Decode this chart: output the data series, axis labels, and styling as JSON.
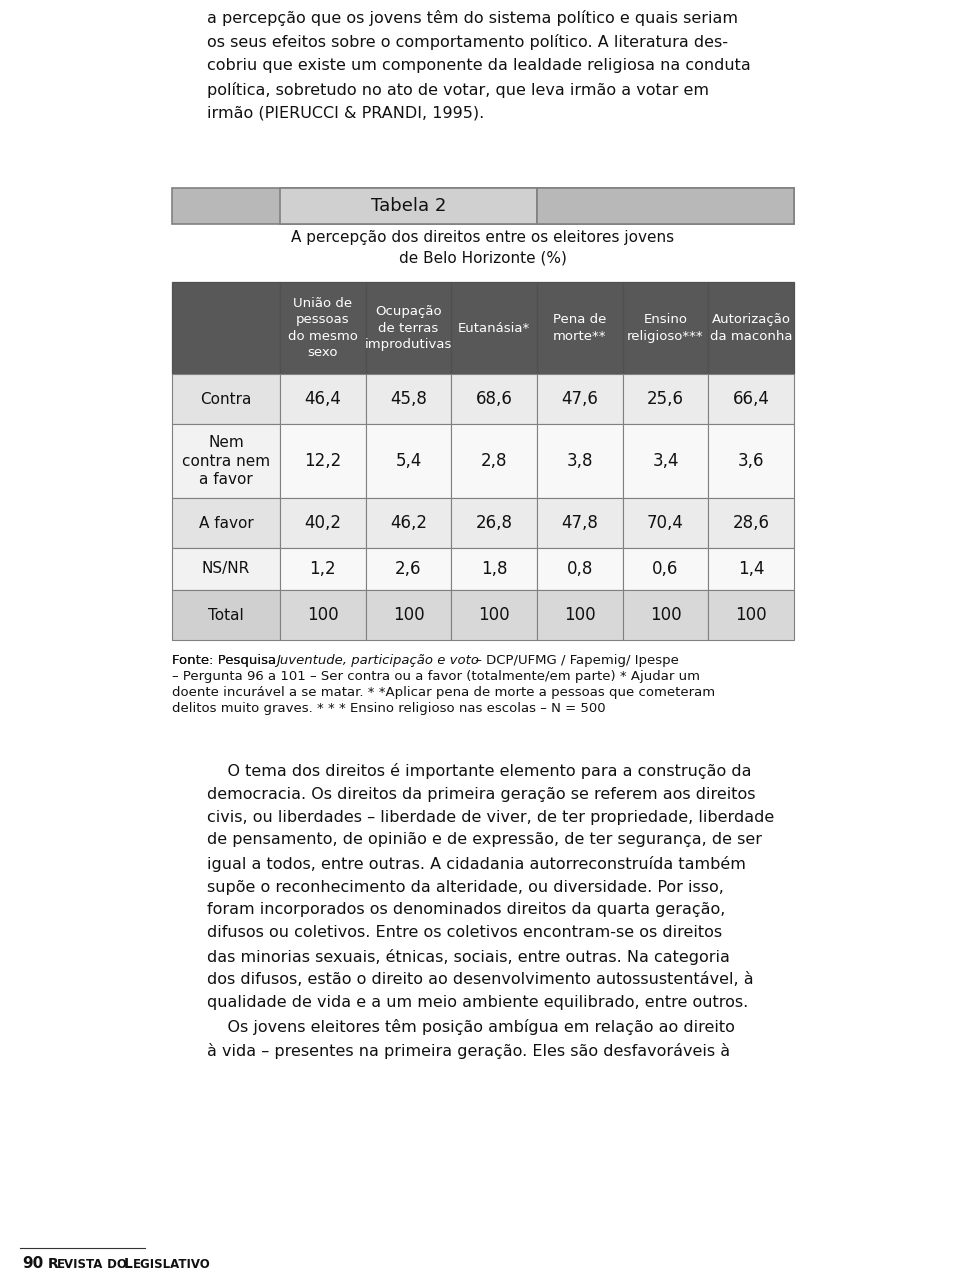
{
  "title_label": "Tabela 2",
  "subtitle": "A percepção dos direitos entre os eleitores jovens\nde Belo Horizonte (%)",
  "header_row": [
    "União de\npessoas\ndo mesmo\nsexo",
    "Ocupação\nde terras\nimprodutivas",
    "Eutanásia*",
    "Pena de\nmorte**",
    "Ensino\nreligioso***",
    "Autorização\nda maconha"
  ],
  "row_labels": [
    "Contra",
    "Nem\ncontra nem\na favor",
    "A favor",
    "NS/NR",
    "Total"
  ],
  "data": [
    [
      "46,4",
      "45,8",
      "68,6",
      "47,6",
      "25,6",
      "66,4"
    ],
    [
      "12,2",
      "5,4",
      "2,8",
      "3,8",
      "3,4",
      "3,6"
    ],
    [
      "40,2",
      "46,2",
      "26,8",
      "47,8",
      "70,4",
      "28,6"
    ],
    [
      "1,2",
      "2,6",
      "1,8",
      "0,8",
      "0,6",
      "1,4"
    ],
    [
      "100",
      "100",
      "100",
      "100",
      "100",
      "100"
    ]
  ],
  "header_bg": "#585858",
  "header_fg": "#ffffff",
  "row_bg_light": "#f0f0f0",
  "row_bg_white": "#fafafa",
  "row_label_bg_light": "#e8e8e8",
  "row_label_bg_white": "#f5f5f5",
  "total_row_bg": "#d8d8d8",
  "title_left_bg": "#b8b8b8",
  "title_center_bg": "#d0d0d0",
  "title_right_bg": "#b8b8b8",
  "border_color": "#808080",
  "text_color": "#111111",
  "footnote_normal": "Fonte: Pesquisa ",
  "footnote_italic": "Juventude, participação e voto",
  "footnote_rest": " – DCP/UFMG / Fapemig/ Ipespe\n– Pergunta 96 a 101 – Ser contra ou a favor (totalmente/em parte) * Ajudar um\ndoente incurável a se matar. * *Aplicar pena de morte a pessoas que cometeram\ndelitos muito graves. * * * Ensino religioso nas escolas – N = 500",
  "top_text": "a percepção que os jovens têm do sistema político e quais seriam\nos seus efeitos sobre o comportamento político. A literatura des-\ncobriu que existe um componente da lealdade religiosa na conduta\npolítica, sobretudo no ato de votar, que leva irmão a votar em\nirmão (PIERUCCI & PRANDI, 1995).",
  "bottom_text": "    O tema dos direitos é importante elemento para a construção da\ndemocracia. Os direitos da primeira geração se referem aos direitos\ncivis, ou liberdades – liberdade de viver, de ter propriedade, liberdade\nde pensamento, de opinião e de expressão, de ter segurança, de ser\nigual a todos, entre outras. A cidadania autorreconstruída também\nsupõe o reconhecimento da alteridade, ou diversidade. Por isso,\nforam incorporados os denominados direitos da quarta geração,\ndifusos ou coletivos. Entre os coletivos encontram-se os direitos\ndas minorias sexuais, étnicas, sociais, entre outras. Na categoria\ndos difusos, estão o direito ao desenvolvimento autossustentável, à\nqualidade de vida e a um meio ambiente equilibrado, entre outros.\n    Os jovens eleitores têm posição ambígua em relação ao direito\nà vida – presentes na primeira geração. Eles são desfavoráveis à",
  "page_number": "90",
  "journal_name": "R",
  "journal_name_full": "EVISTA DO",
  "journal_name_end": " L",
  "journal_name_end2": "EGISLATIVO"
}
